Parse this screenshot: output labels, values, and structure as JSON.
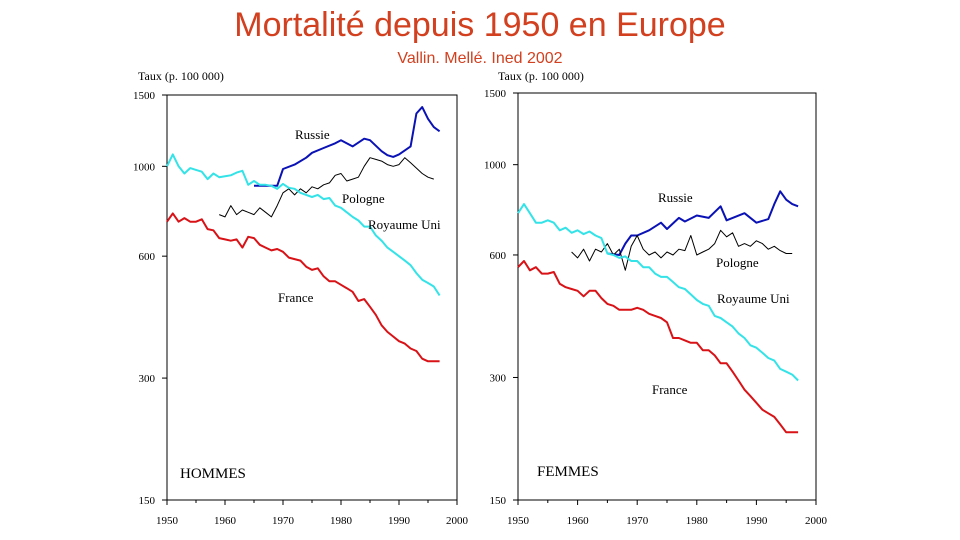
{
  "header": {
    "title": "Mortalité depuis 1950 en Europe",
    "subtitle": "Vallin. Mellé. Ined 2002"
  },
  "chart_data": [
    {
      "type": "line",
      "panel_label": "HOMMES",
      "ylabel": "Taux (p. 100 000)",
      "yscale": "log",
      "ylim": [
        150,
        1500
      ],
      "xlim": [
        1950,
        2000
      ],
      "xticks": [
        1950,
        1960,
        1970,
        1980,
        1990,
        2000
      ],
      "yticks": [
        150,
        300,
        600,
        1000,
        1500
      ],
      "grid": false,
      "series": [
        {
          "name": "Russie",
          "color": "#0a12b5",
          "x": [
            1965,
            1967,
            1969,
            1970,
            1972,
            1974,
            1975,
            1977,
            1979,
            1980,
            1982,
            1984,
            1985,
            1987,
            1988,
            1989,
            1990,
            1992,
            1993,
            1994,
            1995,
            1996,
            1997
          ],
          "y": [
            895,
            895,
            895,
            985,
            1010,
            1050,
            1080,
            1110,
            1140,
            1160,
            1120,
            1170,
            1160,
            1090,
            1065,
            1055,
            1070,
            1120,
            1350,
            1400,
            1310,
            1250,
            1220
          ]
        },
        {
          "name": "Pologne",
          "color": "#000000",
          "x": [
            1959,
            1960,
            1961,
            1962,
            1963,
            1964,
            1965,
            1966,
            1967,
            1968,
            1969,
            1970,
            1971,
            1972,
            1973,
            1974,
            1975,
            1976,
            1977,
            1978,
            1979,
            1980,
            1981,
            1982,
            1983,
            1984,
            1985,
            1986,
            1987,
            1988,
            1989,
            1990,
            1991,
            1992,
            1993,
            1994,
            1995,
            1996
          ],
          "y": [
            760,
            750,
            800,
            760,
            780,
            770,
            760,
            790,
            770,
            750,
            800,
            860,
            880,
            850,
            880,
            860,
            890,
            880,
            900,
            910,
            950,
            960,
            920,
            930,
            940,
            1000,
            1050,
            1040,
            1030,
            1010,
            1000,
            1010,
            1050,
            1020,
            990,
            960,
            940,
            930
          ]
        },
        {
          "name": "Royaume Uni",
          "color": "#33e3e8",
          "x": [
            1950,
            1951,
            1952,
            1953,
            1954,
            1955,
            1956,
            1957,
            1958,
            1959,
            1960,
            1961,
            1962,
            1963,
            1964,
            1965,
            1966,
            1967,
            1968,
            1969,
            1970,
            1971,
            1972,
            1973,
            1974,
            1975,
            1976,
            1977,
            1978,
            1979,
            1980,
            1981,
            1982,
            1983,
            1984,
            1985,
            1986,
            1987,
            1988,
            1989,
            1990,
            1991,
            1992,
            1993,
            1994,
            1995,
            1996,
            1997
          ],
          "y": [
            1000,
            1070,
            1000,
            960,
            990,
            980,
            970,
            930,
            960,
            940,
            945,
            950,
            965,
            975,
            900,
            920,
            900,
            900,
            895,
            880,
            905,
            885,
            880,
            860,
            850,
            840,
            850,
            830,
            835,
            800,
            790,
            770,
            750,
            735,
            710,
            710,
            675,
            655,
            630,
            615,
            600,
            585,
            570,
            545,
            525,
            515,
            505,
            480
          ]
        },
        {
          "name": "France",
          "color": "#d81216",
          "x": [
            1950,
            1951,
            1952,
            1953,
            1954,
            1955,
            1956,
            1957,
            1958,
            1959,
            1960,
            1961,
            1962,
            1963,
            1964,
            1965,
            1966,
            1967,
            1968,
            1969,
            1970,
            1971,
            1972,
            1973,
            1974,
            1975,
            1976,
            1977,
            1978,
            1979,
            1980,
            1981,
            1982,
            1983,
            1984,
            1985,
            1986,
            1987,
            1988,
            1989,
            1990,
            1991,
            1992,
            1993,
            1994,
            1995,
            1996,
            1997
          ],
          "y": [
            730,
            765,
            730,
            745,
            730,
            730,
            740,
            700,
            695,
            665,
            660,
            655,
            660,
            630,
            670,
            665,
            640,
            630,
            620,
            625,
            615,
            595,
            590,
            585,
            565,
            555,
            560,
            535,
            520,
            520,
            510,
            500,
            490,
            465,
            470,
            450,
            430,
            405,
            390,
            380,
            370,
            365,
            355,
            350,
            335,
            330,
            330,
            330
          ]
        }
      ]
    },
    {
      "type": "line",
      "panel_label": "FEMMES",
      "ylabel": "Taux (p. 100 000)",
      "yscale": "log",
      "ylim": [
        150,
        1500
      ],
      "xlim": [
        1950,
        2000
      ],
      "xticks": [
        1950,
        1960,
        1970,
        1980,
        1990,
        2000
      ],
      "yticks": [
        150,
        300,
        600,
        1000,
        1500
      ],
      "grid": false,
      "series": [
        {
          "name": "Russie",
          "color": "#0a12b5",
          "x": [
            1965,
            1967,
            1968,
            1969,
            1970,
            1972,
            1974,
            1975,
            1977,
            1978,
            1980,
            1982,
            1984,
            1985,
            1986,
            1988,
            1990,
            1992,
            1993,
            1994,
            1995,
            1996,
            1997
          ],
          "y": [
            605,
            600,
            640,
            670,
            670,
            690,
            720,
            695,
            740,
            725,
            750,
            740,
            790,
            730,
            740,
            760,
            720,
            735,
            800,
            860,
            820,
            800,
            790
          ]
        },
        {
          "name": "Pologne",
          "color": "#000000",
          "x": [
            1959,
            1960,
            1961,
            1962,
            1963,
            1964,
            1965,
            1966,
            1967,
            1968,
            1969,
            1970,
            1971,
            1972,
            1973,
            1974,
            1975,
            1976,
            1977,
            1978,
            1979,
            1980,
            1981,
            1982,
            1983,
            1984,
            1985,
            1986,
            1987,
            1988,
            1989,
            1990,
            1991,
            1992,
            1993,
            1994,
            1995,
            1996
          ],
          "y": [
            610,
            590,
            620,
            580,
            620,
            610,
            640,
            600,
            620,
            550,
            630,
            670,
            620,
            600,
            610,
            590,
            610,
            600,
            620,
            615,
            670,
            600,
            610,
            620,
            640,
            690,
            665,
            680,
            630,
            640,
            630,
            650,
            640,
            620,
            630,
            615,
            605,
            605
          ]
        },
        {
          "name": "Royaume Uni",
          "color": "#33e3e8",
          "x": [
            1950,
            1951,
            1952,
            1953,
            1954,
            1955,
            1956,
            1957,
            1958,
            1959,
            1960,
            1961,
            1962,
            1963,
            1964,
            1965,
            1966,
            1967,
            1968,
            1969,
            1970,
            1971,
            1972,
            1973,
            1974,
            1975,
            1976,
            1977,
            1978,
            1979,
            1980,
            1981,
            1982,
            1983,
            1984,
            1985,
            1986,
            1987,
            1988,
            1989,
            1990,
            1991,
            1992,
            1993,
            1994,
            1995,
            1996,
            1997
          ],
          "y": [
            760,
            800,
            760,
            720,
            720,
            730,
            720,
            690,
            700,
            680,
            690,
            675,
            685,
            670,
            660,
            605,
            600,
            590,
            595,
            580,
            580,
            560,
            560,
            540,
            530,
            530,
            515,
            500,
            495,
            480,
            465,
            455,
            450,
            425,
            420,
            410,
            400,
            385,
            375,
            360,
            355,
            345,
            335,
            330,
            315,
            310,
            305,
            295
          ]
        },
        {
          "name": "France",
          "color": "#d81216",
          "x": [
            1950,
            1951,
            1952,
            1953,
            1954,
            1955,
            1956,
            1957,
            1958,
            1959,
            1960,
            1961,
            1962,
            1963,
            1964,
            1965,
            1966,
            1967,
            1968,
            1969,
            1970,
            1971,
            1972,
            1973,
            1974,
            1975,
            1976,
            1977,
            1978,
            1979,
            1980,
            1981,
            1982,
            1983,
            1984,
            1985,
            1986,
            1987,
            1988,
            1989,
            1990,
            1991,
            1992,
            1993,
            1994,
            1995,
            1996,
            1997
          ],
          "y": [
            560,
            580,
            550,
            560,
            540,
            540,
            545,
            510,
            500,
            495,
            490,
            475,
            490,
            490,
            470,
            455,
            450,
            440,
            440,
            440,
            445,
            440,
            430,
            425,
            420,
            410,
            375,
            375,
            370,
            365,
            365,
            350,
            350,
            340,
            325,
            325,
            310,
            295,
            280,
            270,
            260,
            250,
            245,
            240,
            230,
            220,
            220,
            220
          ]
        }
      ]
    }
  ]
}
